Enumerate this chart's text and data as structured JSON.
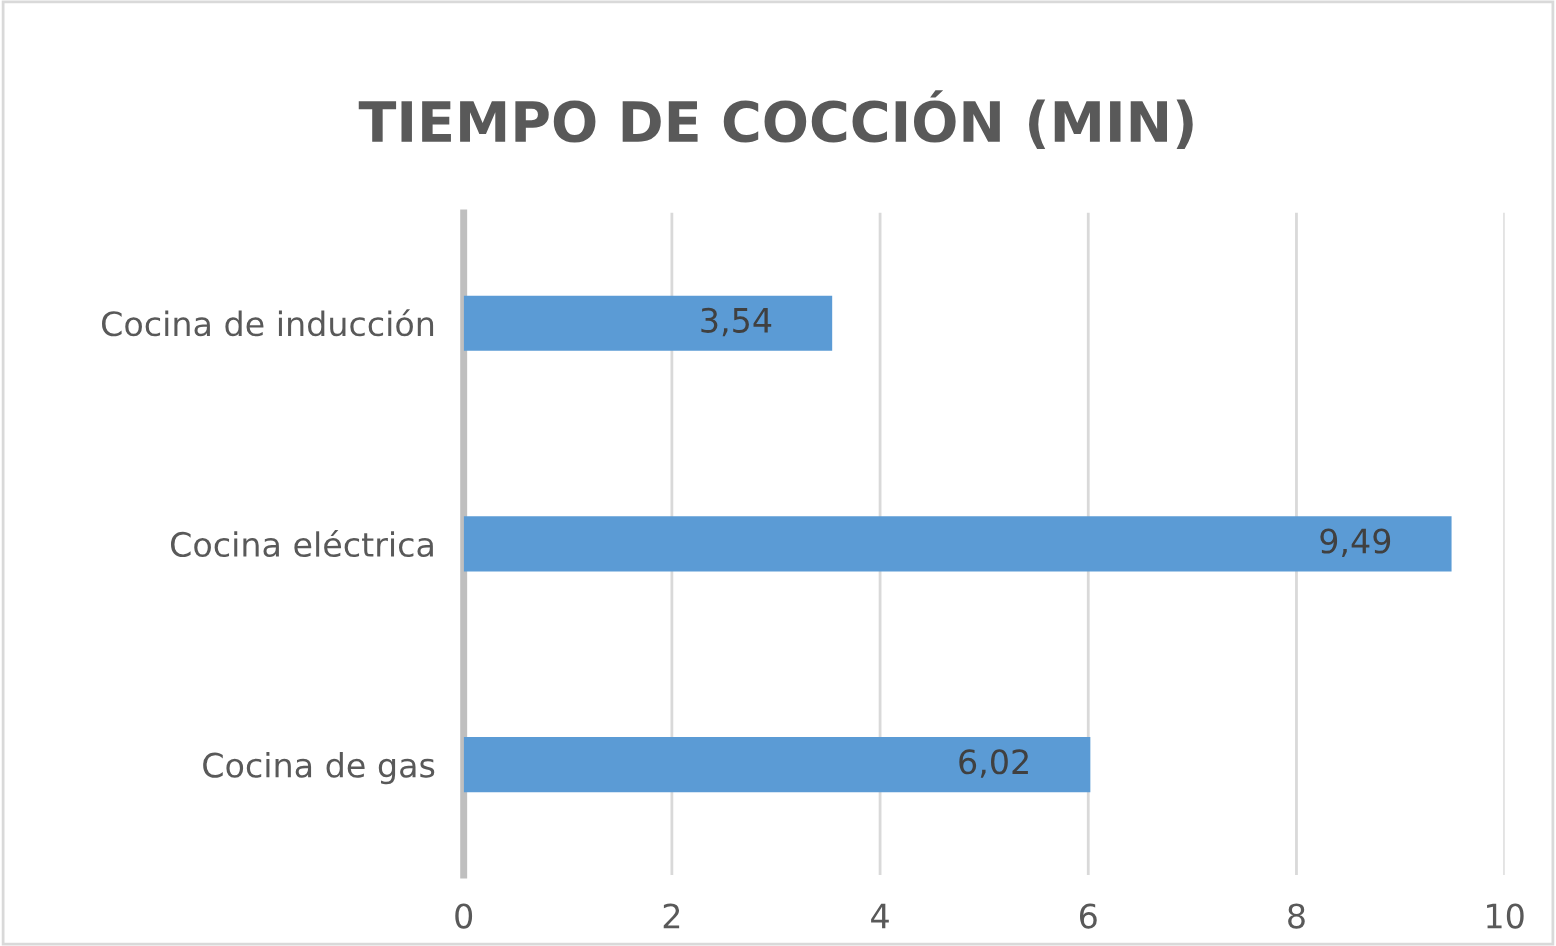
{
  "chart_data": {
    "type": "bar",
    "orientation": "horizontal",
    "title": "TIEMPO DE COCCIÓN (MIN)",
    "categories": [
      "Cocina de inducción",
      "Cocina eléctrica",
      "Cocina de gas"
    ],
    "values": [
      3.54,
      9.49,
      6.02
    ],
    "value_labels": [
      "3,54",
      "9,49",
      "6,02"
    ],
    "color": "#5b9bd5",
    "xlim": [
      0,
      10
    ],
    "xticks": [
      0,
      2,
      4,
      6,
      8,
      10
    ],
    "grid": "x",
    "legend": false
  }
}
